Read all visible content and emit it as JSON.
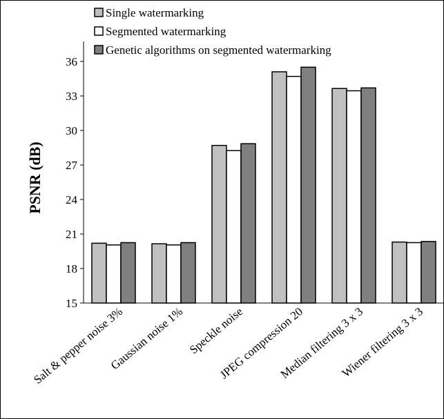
{
  "chart_data": {
    "type": "bar",
    "title": "",
    "xlabel": "",
    "ylabel": "PSNR (dB)",
    "ylim": [
      15,
      37.5
    ],
    "yticks": [
      15,
      18,
      21,
      24,
      27,
      30,
      33,
      36
    ],
    "grid": false,
    "legend_position": "top",
    "categories": [
      "Salt & pepper noise 3%",
      "Gaussian noise 1%",
      "Speckle noise",
      "JPEG compression 20",
      "Median filtering 3 x 3",
      "Wiener filtering 3 x 3"
    ],
    "series": [
      {
        "name": "Single watermarking",
        "color": "#c0c0c0",
        "values": [
          20.2,
          20.15,
          28.7,
          35.1,
          33.65,
          20.3
        ]
      },
      {
        "name": "Segmented watermarking",
        "color": "#ffffff",
        "values": [
          20.05,
          20.05,
          28.25,
          34.7,
          33.45,
          20.25
        ]
      },
      {
        "name": "Genetic algorithms on segmented watermarking",
        "color": "#808080",
        "values": [
          20.25,
          20.25,
          28.85,
          35.5,
          33.7,
          20.35
        ]
      }
    ]
  }
}
